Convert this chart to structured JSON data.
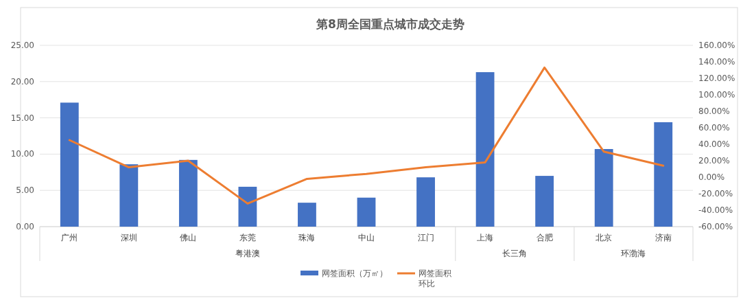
{
  "chart_data": {
    "type": "bar",
    "title": "第8周全国重点城市成交走势",
    "categories": [
      "广州",
      "深圳",
      "佛山",
      "东莞",
      "珠海",
      "中山",
      "江门",
      "上海",
      "合肥",
      "北京",
      "济南"
    ],
    "series": [
      {
        "name": "网签面积（万㎡）",
        "color": "#4472c4",
        "values": [
          17.1,
          8.6,
          9.2,
          5.5,
          3.3,
          4.0,
          6.8,
          21.3,
          7.0,
          10.7,
          14.4
        ]
      },
      {
        "name": "网签面积环比",
        "type": "line",
        "axis": "y2",
        "color": "#ed7d31",
        "values": [
          45,
          12,
          20,
          -32,
          -2,
          4,
          12,
          18,
          133,
          31,
          14
        ]
      }
    ],
    "ylim": [
      0,
      25
    ],
    "yticks": [
      {
        "value": 0,
        "label": "0.00"
      },
      {
        "value": 5,
        "label": "5.00"
      },
      {
        "value": 10,
        "label": "10.00"
      },
      {
        "value": 15,
        "label": "15.00"
      },
      {
        "value": 20,
        "label": "20.00"
      },
      {
        "value": 25,
        "label": "25.00"
      }
    ],
    "y2lim": [
      -60,
      160
    ],
    "y2ticks": [
      {
        "value": -60,
        "label": "-60.00%"
      },
      {
        "value": -40,
        "label": "-40.00%"
      },
      {
        "value": -20,
        "label": "-20.00%"
      },
      {
        "value": 0,
        "label": "0.00%"
      },
      {
        "value": 20,
        "label": "20.00%"
      },
      {
        "value": 40,
        "label": "40.00%"
      },
      {
        "value": 60,
        "label": "60.00%"
      },
      {
        "value": 80,
        "label": "80.00%"
      },
      {
        "value": 100,
        "label": "100.00%"
      },
      {
        "value": 120,
        "label": "120.00%"
      },
      {
        "value": 140,
        "label": "140.00%"
      },
      {
        "value": 160,
        "label": "160.00%"
      }
    ],
    "annotations": [
      "粤港澳",
      "长三角",
      "环渤海"
    ],
    "grid": "y",
    "legend": "bottom"
  }
}
